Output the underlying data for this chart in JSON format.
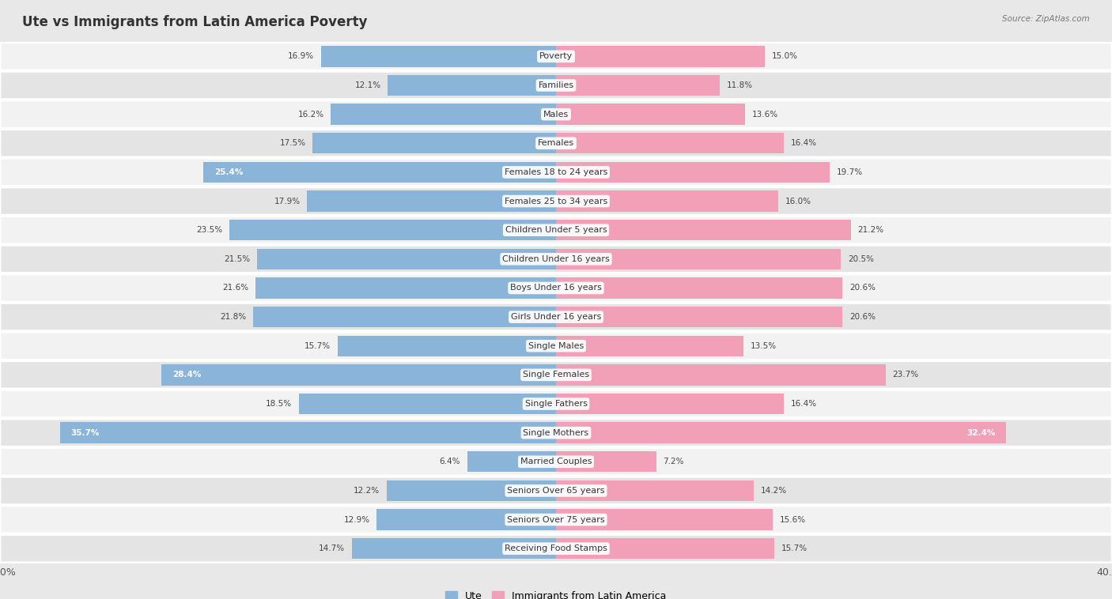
{
  "title": "Ute vs Immigrants from Latin America Poverty",
  "source": "Source: ZipAtlas.com",
  "categories": [
    "Poverty",
    "Families",
    "Males",
    "Females",
    "Females 18 to 24 years",
    "Females 25 to 34 years",
    "Children Under 5 years",
    "Children Under 16 years",
    "Boys Under 16 years",
    "Girls Under 16 years",
    "Single Males",
    "Single Females",
    "Single Fathers",
    "Single Mothers",
    "Married Couples",
    "Seniors Over 65 years",
    "Seniors Over 75 years",
    "Receiving Food Stamps"
  ],
  "ute_values": [
    16.9,
    12.1,
    16.2,
    17.5,
    25.4,
    17.9,
    23.5,
    21.5,
    21.6,
    21.8,
    15.7,
    28.4,
    18.5,
    35.7,
    6.4,
    12.2,
    12.9,
    14.7
  ],
  "immigrant_values": [
    15.0,
    11.8,
    13.6,
    16.4,
    19.7,
    16.0,
    21.2,
    20.5,
    20.6,
    20.6,
    13.5,
    23.7,
    16.4,
    32.4,
    7.2,
    14.2,
    15.6,
    15.7
  ],
  "ute_color": "#8ab4d8",
  "immigrant_color": "#f2a0b8",
  "ute_label": "Ute",
  "immigrant_label": "Immigrants from Latin America",
  "axis_limit": 40.0,
  "bg_color": "#e8e8e8",
  "row_colors": [
    "#f2f2f2",
    "#e4e4e4"
  ],
  "title_fontsize": 12,
  "label_fontsize": 8,
  "value_fontsize": 7.5,
  "legend_fontsize": 9
}
